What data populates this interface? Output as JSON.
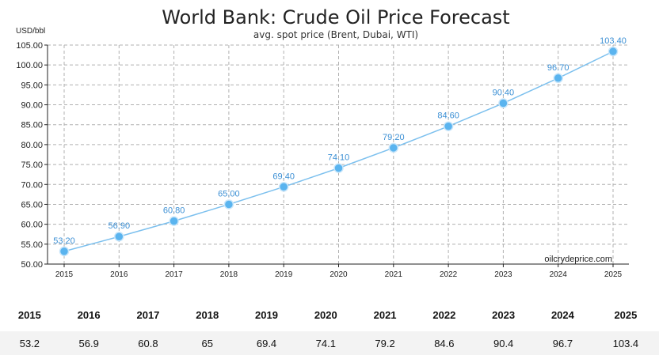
{
  "chart_data": {
    "type": "line",
    "title": "World Bank: Crude Oil Price Forecast",
    "subtitle": "avg. spot price (Brent, Dubai, WTI)",
    "ylabel": "USD/bbl",
    "xlabel": "",
    "categories": [
      "2015",
      "2016",
      "2017",
      "2018",
      "2019",
      "2020",
      "2021",
      "2022",
      "2023",
      "2024",
      "2025"
    ],
    "series": [
      {
        "values": [
          53.2,
          56.9,
          60.8,
          65.0,
          69.4,
          74.1,
          79.2,
          84.6,
          90.4,
          96.7,
          103.4
        ],
        "labels": [
          "53.20",
          "56.90",
          "60.80",
          "65.00",
          "69.40",
          "74.10",
          "79.20",
          "84.60",
          "90.40",
          "96.70",
          "103.40"
        ]
      }
    ],
    "ylim": [
      50,
      105
    ],
    "yticks": [
      "50.00",
      "55.00",
      "60.00",
      "65.00",
      "70.00",
      "75.00",
      "80.00",
      "85.00",
      "90.00",
      "95.00",
      "100.00",
      "105.00"
    ],
    "grid": true,
    "watermark": "oilcrydeprice.com",
    "color": "#3b8fd4"
  },
  "table": {
    "years": [
      "2015",
      "2016",
      "2017",
      "2018",
      "2019",
      "2020",
      "2021",
      "2022",
      "2023",
      "2024",
      "2025"
    ],
    "values": [
      "53.2",
      "56.9",
      "60.8",
      "65",
      "69.4",
      "74.1",
      "79.2",
      "84.6",
      "90.4",
      "96.7",
      "103.4"
    ]
  }
}
